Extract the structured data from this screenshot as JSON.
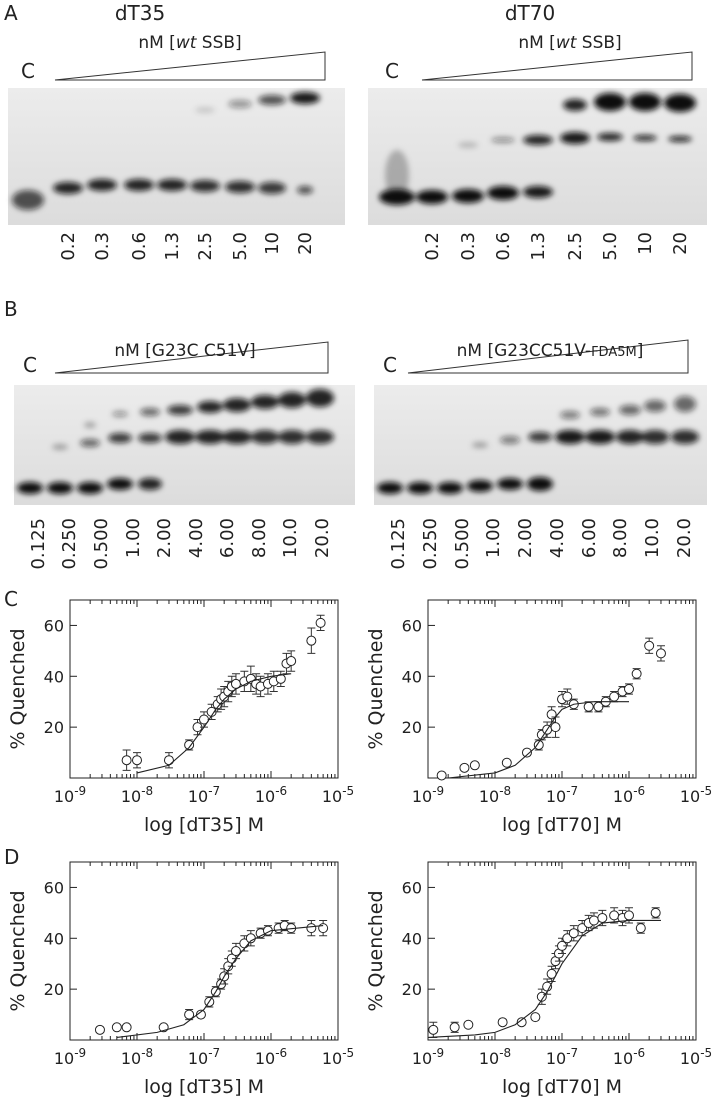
{
  "panel_labels": [
    "A",
    "B",
    "C",
    "D"
  ],
  "gels": [
    {
      "title": "dT35",
      "subtitle": [
        "nM [",
        "wt",
        " SSB]"
      ],
      "control": "C",
      "lanes": [
        "0.2",
        "0.3",
        "0.6",
        "1.3",
        "2.5",
        "5.0",
        "10",
        "20"
      ]
    },
    {
      "title": "dT70",
      "subtitle": [
        "nM [",
        "wt",
        " SSB]"
      ],
      "control": "C",
      "lanes": [
        "0.2",
        "0.3",
        "0.6",
        "1.3",
        "2.5",
        "5.0",
        "10",
        "20"
      ]
    },
    {
      "subtitle": [
        "nM [G23C C51V]"
      ],
      "control": "C",
      "lanes": [
        "0.125",
        "0.250",
        "0.500",
        "1.00",
        "2.00",
        "4.00",
        "6.00",
        "8.00",
        "10.0",
        "20.0"
      ]
    },
    {
      "subtitle": [
        "nM [G23CC51V-",
        "FDA5M",
        "]"
      ],
      "control": "C",
      "lanes": [
        "0.125",
        "0.250",
        "0.500",
        "1.00",
        "2.00",
        "4.00",
        "6.00",
        "8.00",
        "10.0",
        "20.0"
      ]
    }
  ],
  "chart_data": [
    {
      "type": "scatter",
      "xlabel": "log [dT35] M",
      "ylabel": "% Quenched",
      "log_x": true,
      "xlim": [
        1e-09,
        1e-05
      ],
      "ylim": [
        0,
        70
      ],
      "xticks": [
        {
          "value": 1e-09,
          "label": "10-9"
        },
        {
          "value": 1e-08,
          "label": "10-8"
        },
        {
          "value": 1e-07,
          "label": "10-7"
        },
        {
          "value": 1e-06,
          "label": "10-6"
        },
        {
          "value": 1e-05,
          "label": "10-5"
        }
      ],
      "yticks": [
        20,
        40,
        60
      ],
      "series": [
        {
          "x": [
            7e-09,
            1e-08,
            3e-08,
            6e-08,
            8e-08,
            1e-07,
            1.3e-07,
            1.6e-07,
            1.8e-07,
            2e-07,
            2.3e-07,
            2.6e-07,
            3e-07,
            4e-07,
            5e-07,
            6e-07,
            7e-07,
            9e-07,
            1.1e-06,
            1.4e-06,
            1.7e-06,
            2e-06,
            4e-06,
            5.5e-06
          ],
          "values": [
            7,
            7,
            7,
            13,
            20,
            23,
            26,
            29,
            31,
            32,
            34,
            36,
            37,
            38,
            39,
            37,
            36,
            37,
            38,
            39,
            45,
            46,
            54,
            61
          ],
          "errors": [
            4,
            3,
            3,
            2,
            3,
            3,
            3,
            3,
            4,
            4,
            4,
            4,
            4,
            4,
            5,
            4,
            4,
            4,
            4,
            3,
            4,
            4,
            5,
            3
          ]
        },
        {
          "type": "line",
          "x": [
            1e-08,
            3e-08,
            6e-08,
            1e-07,
            1.5e-07,
            2e-07,
            3e-07,
            5e-07,
            1e-06,
            2e-06
          ],
          "values": [
            2,
            5,
            12,
            20,
            27,
            31,
            35,
            38,
            40,
            41
          ]
        }
      ]
    },
    {
      "type": "scatter",
      "xlabel": "log [dT70] M",
      "ylabel": "% Quenched",
      "log_x": true,
      "xlim": [
        1e-09,
        1e-05
      ],
      "ylim": [
        0,
        70
      ],
      "xticks": [
        {
          "value": 1e-09,
          "label": "10-9"
        },
        {
          "value": 1e-08,
          "label": "10-8"
        },
        {
          "value": 1e-07,
          "label": "10-7"
        },
        {
          "value": 1e-06,
          "label": "10-6"
        },
        {
          "value": 1e-05,
          "label": "10-5"
        }
      ],
      "yticks": [
        20,
        40,
        60
      ],
      "series": [
        {
          "x": [
            1.6e-09,
            3.5e-09,
            5e-09,
            1.5e-08,
            3e-08,
            4.5e-08,
            5e-08,
            6e-08,
            7e-08,
            8e-08,
            1e-07,
            1.2e-07,
            1.5e-07,
            2.5e-07,
            3.5e-07,
            4.5e-07,
            6e-07,
            8e-07,
            1e-06,
            1.3e-06,
            2e-06,
            3e-06
          ],
          "values": [
            1,
            4,
            5,
            6,
            10,
            13,
            17,
            19,
            25,
            20,
            31,
            32,
            29,
            28,
            28,
            30,
            32,
            34,
            35,
            41,
            52,
            49
          ],
          "errors": [
            0,
            0,
            0,
            1,
            1,
            2,
            2,
            3,
            3,
            4,
            3,
            3,
            2,
            2,
            2,
            2,
            2,
            2,
            2,
            2,
            3,
            3
          ]
        },
        {
          "type": "line",
          "x": [
            2e-09,
            1e-08,
            2e-08,
            4e-08,
            6e-08,
            8e-08,
            1e-07,
            1.5e-07,
            3e-07,
            1e-06
          ],
          "values": [
            0,
            2,
            5,
            12,
            19,
            24,
            27,
            29,
            30,
            30
          ]
        }
      ]
    },
    {
      "type": "scatter",
      "xlabel": "log [dT35] M",
      "ylabel": "% Quenched",
      "log_x": true,
      "xlim": [
        1e-09,
        1e-05
      ],
      "ylim": [
        0,
        70
      ],
      "xticks": [
        {
          "value": 1e-09,
          "label": "10-9"
        },
        {
          "value": 1e-08,
          "label": "10-8"
        },
        {
          "value": 1e-07,
          "label": "10-7"
        },
        {
          "value": 1e-06,
          "label": "10-6"
        },
        {
          "value": 1e-05,
          "label": "10-5"
        }
      ],
      "yticks": [
        20,
        40,
        60
      ],
      "series": [
        {
          "x": [
            2.8e-09,
            5e-09,
            7e-09,
            2.5e-08,
            6e-08,
            9e-08,
            1.2e-07,
            1.5e-07,
            1.8e-07,
            2e-07,
            2.3e-07,
            2.6e-07,
            3e-07,
            4e-07,
            5e-07,
            7e-07,
            9e-07,
            1.3e-06,
            1.6e-06,
            2e-06,
            4e-06,
            6e-06
          ],
          "values": [
            4,
            5,
            5,
            5,
            10,
            10,
            15,
            19,
            22,
            25,
            29,
            32,
            35,
            38,
            40,
            42,
            43,
            44,
            45,
            44,
            44,
            44
          ],
          "errors": [
            0,
            0,
            0,
            0,
            2,
            1,
            2,
            2,
            2,
            3,
            3,
            3,
            3,
            3,
            3,
            2,
            2,
            2,
            2,
            2,
            3,
            3
          ]
        },
        {
          "type": "line",
          "x": [
            5e-09,
            2e-08,
            5e-08,
            1e-07,
            1.5e-07,
            2e-07,
            3e-07,
            5e-07,
            1e-06,
            6e-06
          ],
          "values": [
            1,
            3,
            6,
            12,
            19,
            25,
            32,
            39,
            43,
            45
          ]
        }
      ]
    },
    {
      "type": "scatter",
      "xlabel": "log [dT70] M",
      "ylabel": "% Quenched",
      "log_x": true,
      "xlim": [
        1e-09,
        1e-05
      ],
      "ylim": [
        0,
        70
      ],
      "xticks": [
        {
          "value": 1e-09,
          "label": "10-9"
        },
        {
          "value": 1e-08,
          "label": "10-8"
        },
        {
          "value": 1e-07,
          "label": "10-7"
        },
        {
          "value": 1e-06,
          "label": "10-6"
        },
        {
          "value": 1e-05,
          "label": "10-5"
        }
      ],
      "yticks": [
        20,
        40,
        60
      ],
      "series": [
        {
          "x": [
            1.2e-09,
            2.5e-09,
            4e-09,
            1.3e-08,
            2.5e-08,
            4e-08,
            5e-08,
            6e-08,
            7e-08,
            8e-08,
            9e-08,
            1e-07,
            1.2e-07,
            1.5e-07,
            2e-07,
            2.5e-07,
            3e-07,
            4e-07,
            6e-07,
            8e-07,
            1e-06,
            1.5e-06,
            2.5e-06
          ],
          "values": [
            4,
            5,
            6,
            7,
            7,
            9,
            17,
            21,
            26,
            31,
            34,
            37,
            40,
            42,
            44,
            46,
            47,
            48,
            49,
            48,
            49,
            44,
            50
          ],
          "errors": [
            3,
            2,
            1,
            1,
            1,
            1,
            3,
            3,
            3,
            3,
            3,
            3,
            3,
            3,
            3,
            3,
            3,
            3,
            3,
            3,
            3,
            2,
            2
          ]
        },
        {
          "type": "line",
          "x": [
            1e-09,
            5e-09,
            1e-08,
            2e-08,
            4e-08,
            6e-08,
            1e-07,
            2e-07,
            4e-07,
            1e-06,
            3e-06
          ],
          "values": [
            1,
            2,
            3,
            6,
            12,
            19,
            30,
            41,
            46,
            47,
            47
          ]
        }
      ]
    }
  ]
}
